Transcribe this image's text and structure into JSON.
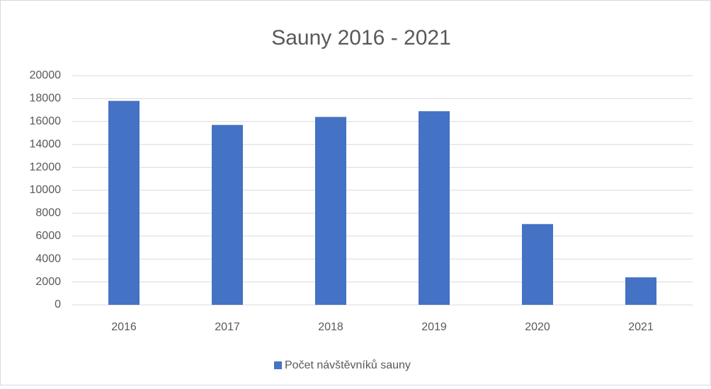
{
  "chart_data": {
    "type": "bar",
    "title": "Sauny 2016 - 2021",
    "categories": [
      "2016",
      "2017",
      "2018",
      "2019",
      "2020",
      "2021"
    ],
    "series": [
      {
        "name": "Počet návštěvníků sauny",
        "color": "#4472c4",
        "values": [
          17800,
          15700,
          16400,
          16900,
          7050,
          2400
        ]
      }
    ],
    "ylim": [
      0,
      20000
    ],
    "yticks": [
      0,
      2000,
      4000,
      6000,
      8000,
      10000,
      12000,
      14000,
      16000,
      18000,
      20000
    ],
    "grid": true,
    "legend": "bottom"
  }
}
